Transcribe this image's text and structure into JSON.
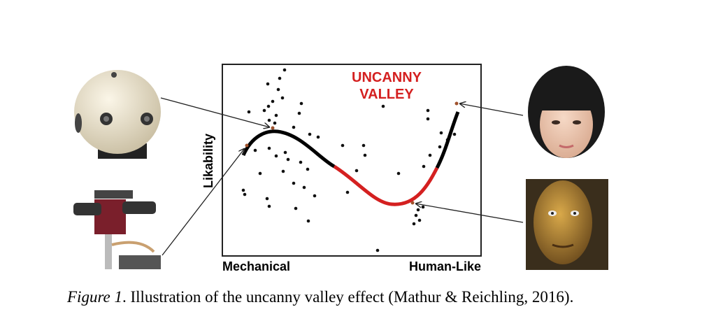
{
  "figure": {
    "y_label": "Likability",
    "x_label_left": "Mechanical",
    "x_label_right": "Human-Like",
    "annotation": [
      "UNCANNY",
      "VALLEY"
    ],
    "caption": {
      "label": "Figure 1",
      "text": ". Illustration of the uncanny valley effect (Mathur & Reichling, 2016)."
    }
  }
}
